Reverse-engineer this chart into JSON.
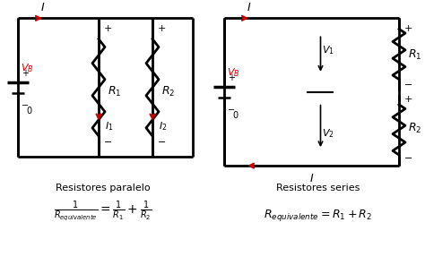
{
  "bg_color": "#ffffff",
  "line_color": "#000000",
  "arrow_color": "#cc0000",
  "vb_color": "#cc0000",
  "title1": "Resistores paralelo",
  "title2": "Resistores series",
  "formula1": "$\\frac{1}{R_{equivalente}} = \\frac{1}{R_1} + \\frac{1}{R_2}$",
  "formula2": "$R_{equivalente} = R_1 + R_2$",
  "lw": 2.0
}
